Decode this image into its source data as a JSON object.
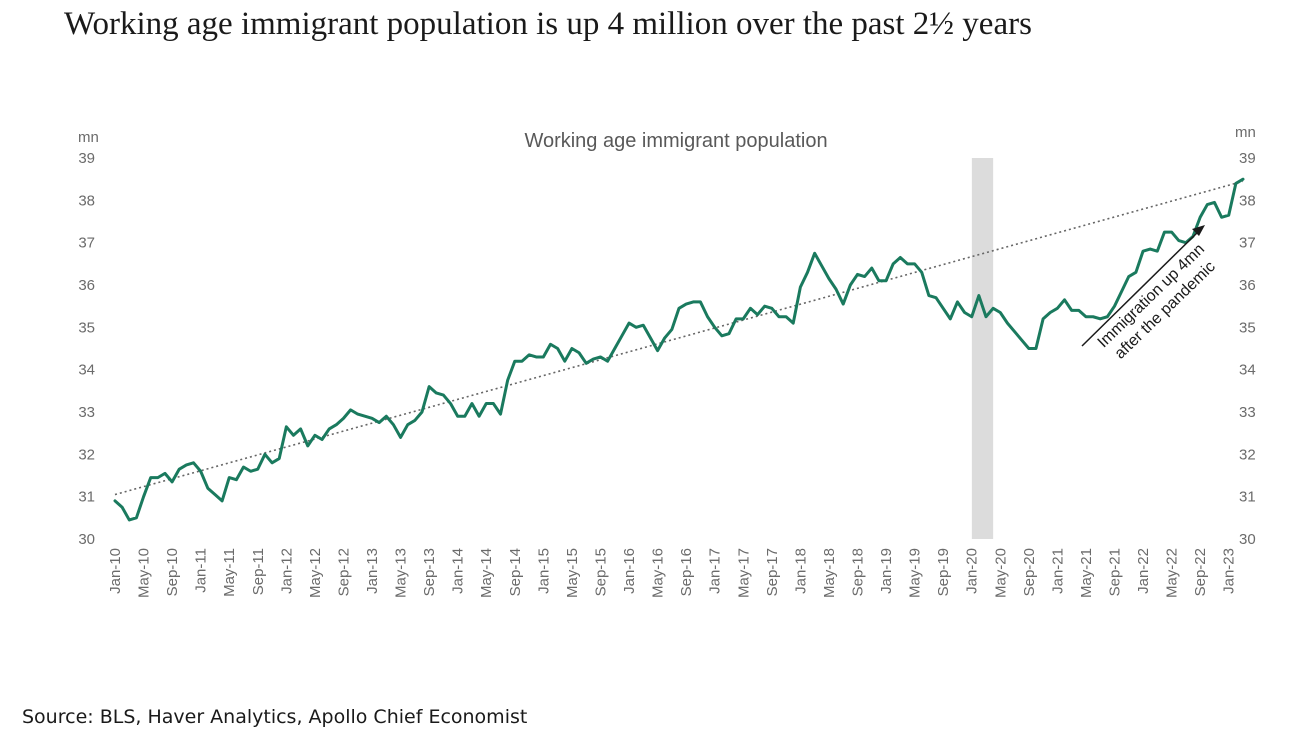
{
  "headline": "Working age immigrant population is up 4 million over the past 2½ years",
  "source": "Source: BLS, Haver Analytics, Apollo Chief Economist",
  "colors": {
    "line": "#1a7a5e",
    "trend": "#666666",
    "shade": "#dcdcdc"
  },
  "chart_data": {
    "type": "line",
    "title": "Working age immigrant population",
    "ylabel_left": "mn",
    "ylabel_right": "mn",
    "ylim": [
      30,
      39
    ],
    "yticks": [
      30,
      31,
      32,
      33,
      34,
      35,
      36,
      37,
      38,
      39
    ],
    "xticks": [
      "Jan-10",
      "May-10",
      "Sep-10",
      "Jan-11",
      "May-11",
      "Sep-11",
      "Jan-12",
      "May-12",
      "Sep-12",
      "Jan-13",
      "May-13",
      "Sep-13",
      "Jan-14",
      "May-14",
      "Sep-14",
      "Jan-15",
      "May-15",
      "Sep-15",
      "Jan-16",
      "May-16",
      "Sep-16",
      "Jan-17",
      "May-17",
      "Sep-17",
      "Jan-18",
      "May-18",
      "Sep-18",
      "Jan-19",
      "May-19",
      "Sep-19",
      "Jan-20",
      "May-20",
      "Sep-20",
      "Jan-21",
      "May-21",
      "Sep-21",
      "Jan-22",
      "May-22",
      "Sep-22",
      "Jan-23"
    ],
    "x_start": "Jan-10",
    "x_end": "Mar-23",
    "grid": false,
    "recession_shade": {
      "from": "Feb-20",
      "to": "Apr-20"
    },
    "annotation": {
      "line1": "Immigration up 4mn",
      "line2": "after the pandemic"
    },
    "series": [
      {
        "values": [
          30.9,
          30.75,
          30.45,
          30.5,
          31.0,
          31.45,
          31.45,
          31.55,
          31.35,
          31.65,
          31.75,
          31.8,
          31.6,
          31.2,
          31.05,
          30.9,
          31.45,
          31.4,
          31.7,
          31.6,
          31.65,
          32.0,
          31.8,
          31.9,
          32.65,
          32.45,
          32.6,
          32.2,
          32.45,
          32.35,
          32.6,
          32.7,
          32.85,
          33.05,
          32.95,
          32.9,
          32.85,
          32.75,
          32.9,
          32.7,
          32.4,
          32.7,
          32.8,
          33.0,
          33.6,
          33.45,
          33.4,
          33.2,
          32.9,
          32.9,
          33.2,
          32.9,
          33.2,
          33.2,
          32.95,
          33.75,
          34.2,
          34.2,
          34.35,
          34.3,
          34.3,
          34.6,
          34.5,
          34.2,
          34.5,
          34.4,
          34.15,
          34.25,
          34.3,
          34.2,
          34.5,
          34.8,
          35.1,
          35.0,
          35.05,
          34.75,
          34.45,
          34.75,
          34.95,
          35.45,
          35.55,
          35.6,
          35.6,
          35.25,
          35.0,
          34.8,
          34.85,
          35.2,
          35.2,
          35.45,
          35.3,
          35.5,
          35.45,
          35.25,
          35.25,
          35.1,
          35.95,
          36.3,
          36.75,
          36.45,
          36.15,
          35.9,
          35.55,
          36.0,
          36.25,
          36.2,
          36.4,
          36.1,
          36.1,
          36.5,
          36.65,
          36.5,
          36.5,
          36.3,
          35.75,
          35.7,
          35.45,
          35.2,
          35.6,
          35.35,
          35.25,
          35.75,
          35.25,
          35.45,
          35.35,
          35.1,
          34.9,
          34.7,
          34.5,
          34.5,
          35.2,
          35.35,
          35.45,
          35.65,
          35.4,
          35.4,
          35.25,
          35.25,
          35.2,
          35.25,
          35.5,
          35.85,
          36.2,
          36.3,
          36.8,
          36.85,
          36.8,
          37.25,
          37.25,
          37.05,
          37.0,
          37.15,
          37.6,
          37.9,
          37.95,
          37.6,
          37.65,
          38.4,
          38.5
        ]
      }
    ],
    "trend": {
      "from": {
        "x": "Jan-10",
        "y": 31.05
      },
      "to": {
        "x": "Mar-23",
        "y": 38.45
      }
    }
  }
}
